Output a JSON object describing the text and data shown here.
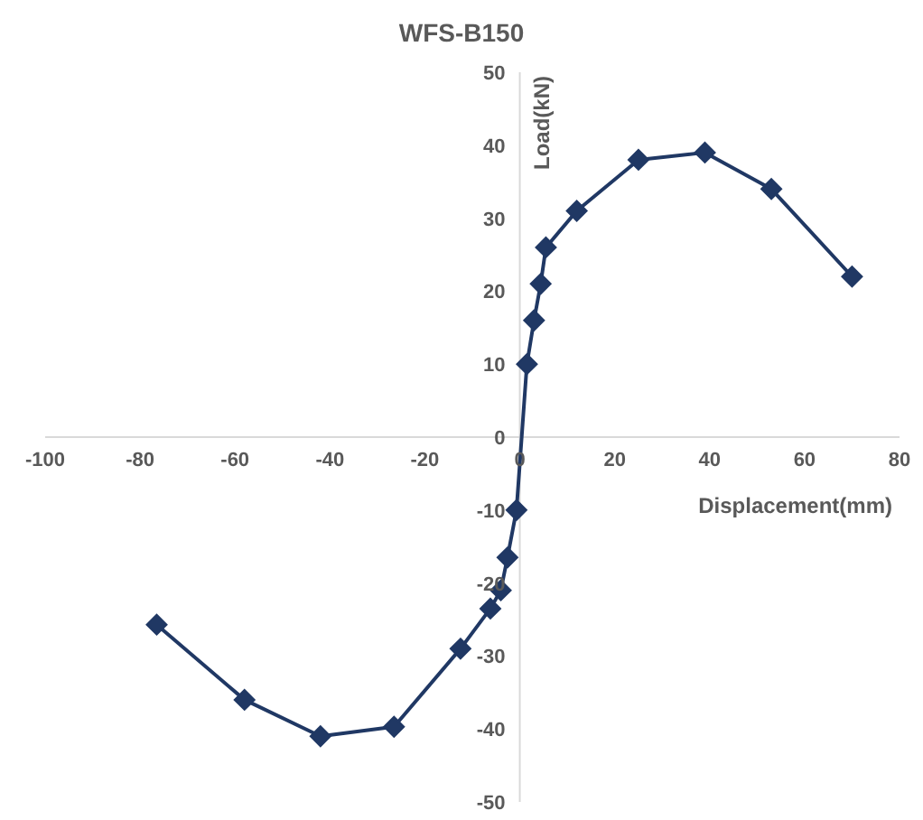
{
  "chart_data": {
    "type": "line",
    "title": "WFS-B150",
    "xlabel": "Displacement(mm)",
    "ylabel": "Load(kN)",
    "x": [
      -76.5,
      -58,
      -42,
      -26.5,
      -12.5,
      -6.2,
      -4,
      -2.6,
      -0.7,
      1.5,
      3,
      4.4,
      5.5,
      12,
      25,
      39,
      53,
      70
    ],
    "series": [
      {
        "color": "#203864",
        "values": [
          -25.7,
          -36,
          -41,
          -39.7,
          -29,
          -23.5,
          -21,
          -16.5,
          -10,
          10,
          16,
          21,
          26,
          31,
          38,
          39,
          34,
          22
        ]
      }
    ],
    "xlim": [
      -100,
      80
    ],
    "xticks": [
      -100,
      -80,
      -60,
      -40,
      -20,
      0,
      20,
      40,
      60,
      80
    ],
    "ylim": [
      -50,
      50
    ],
    "yticks": [
      -50,
      -40,
      -30,
      -20,
      -10,
      0,
      10,
      20,
      30,
      40,
      50
    ],
    "marker": "diamond",
    "grid": false
  }
}
